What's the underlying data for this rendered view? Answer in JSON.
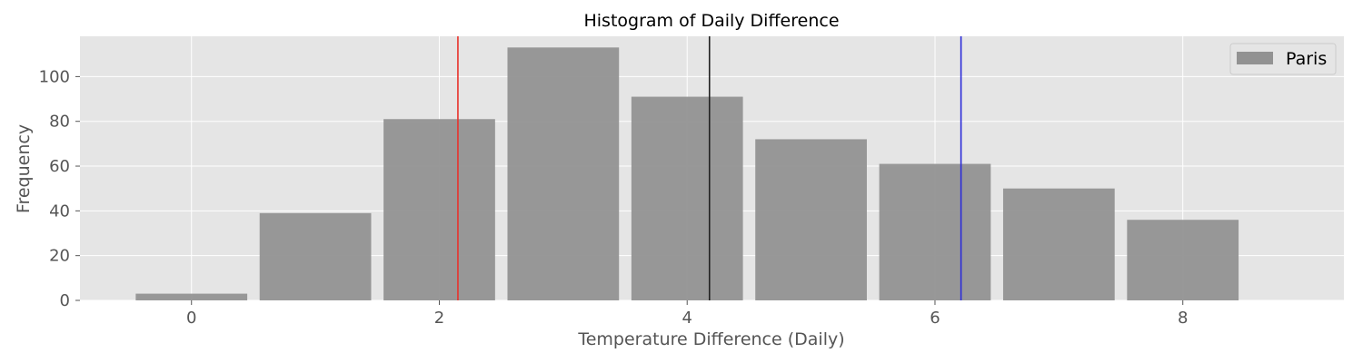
{
  "chart_data": {
    "type": "bar",
    "title": "Histogram of Daily Difference",
    "xlabel": "Temperature Difference (Daily)",
    "ylabel": "Frequency",
    "x": [
      0,
      1,
      2,
      3,
      4,
      5,
      6,
      7,
      8
    ],
    "series": [
      {
        "name": "Paris",
        "values": [
          3,
          39,
          81,
          113,
          91,
          72,
          61,
          50,
          36
        ],
        "color": "#929292"
      }
    ],
    "xlim": [
      -0.9,
      9.3
    ],
    "ylim": [
      0,
      118
    ],
    "xticks": [
      0,
      2,
      4,
      6,
      8
    ],
    "yticks": [
      0,
      20,
      40,
      60,
      80,
      100
    ],
    "vlines": [
      {
        "x": 2.15,
        "color": "#e8322b"
      },
      {
        "x": 4.18,
        "color": "#222222"
      },
      {
        "x": 6.21,
        "color": "#2b2bd8"
      }
    ],
    "grid": true,
    "legend_position": "top-right",
    "background": "#e5e5e5"
  }
}
